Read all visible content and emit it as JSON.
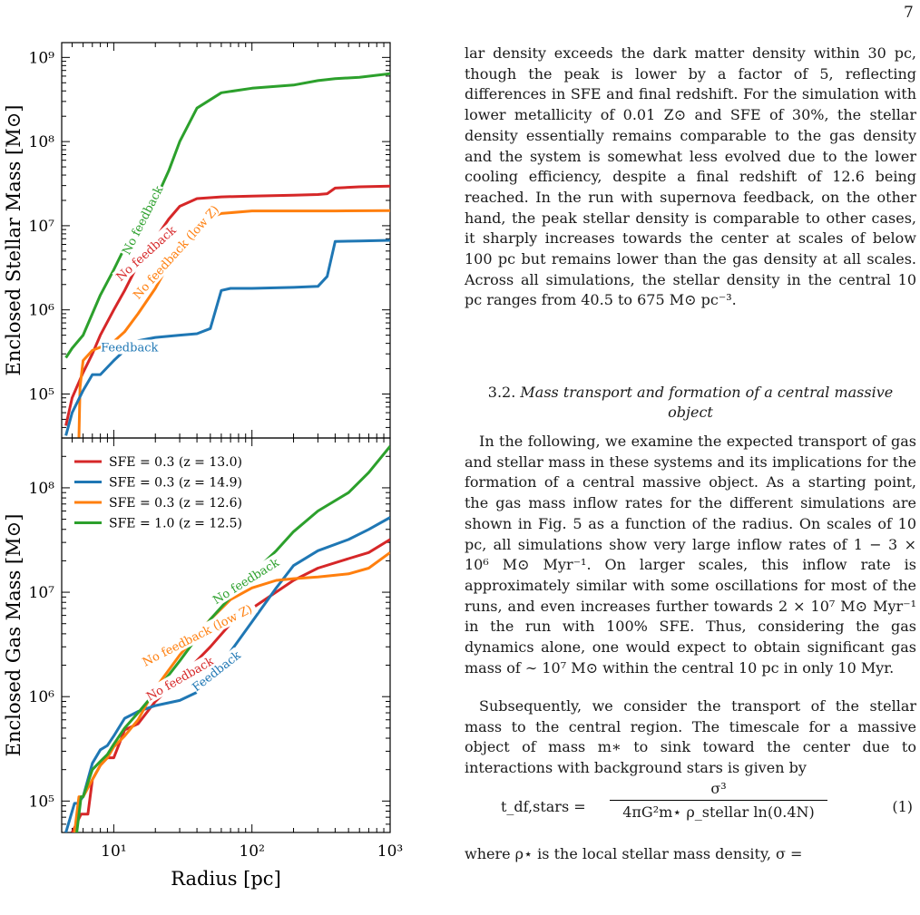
{
  "page_number": "7",
  "paragraph1": "lar density exceeds the dark matter density within 30 pc, though the peak is lower by a factor of 5, reflecting differences in SFE and final redshift. For the simulation with lower metallicity of 0.01 Z⊙ and SFE of 30%, the stellar density essentially remains comparable to the gas density and the system is somewhat less evolved due to the lower cooling efficiency, despite a final redshift of 12.6 being reached. In the run with supernova feedback, on the other hand, the peak stellar density is comparable to other cases, it sharply increases towards the center at scales of below 100 pc but remains lower than the gas density at all scales. Across all simulations, the stellar density in the central 10 pc ranges from 40.5 to 675 M⊙ pc⁻³.",
  "section": {
    "number": "3.2.",
    "title": "Mass transport and formation of a central massive object"
  },
  "paragraph2": "In the following, we examine the expected transport of gas and stellar mass in these systems and its implications for the formation of a central massive object. As a starting point, the gas mass inflow rates for the different simulations are shown in Fig. 5 as a function of the radius. On scales of 10 pc, all simulations show very large inflow rates of 1 − 3 × 10⁶ M⊙ Myr⁻¹. On larger scales, this inflow rate is approximately similar with some oscillations for most of the runs, and even increases further towards 2 × 10⁷ M⊙ Myr⁻¹ in the run with 100% SFE. Thus, considering the gas dynamics alone, one would expect to obtain significant gas mass of ∼ 10⁷ M⊙ within the central 10 pc in only 10 Myr.",
  "paragraph3": "Subsequently, we consider the transport of the stellar mass to the central region. The timescale for a massive object of mass m∗ to sink toward the center due to interactions with background stars is given by",
  "equation": {
    "lhs": "t_df,stars =",
    "numerator": "σ³",
    "denominator": "4πG²m⋆ ρ_stellar ln(0.4N)",
    "number": "(1)"
  },
  "tail": "where ρ⋆ is the local stellar mass density, σ =",
  "colors": {
    "red": "#d62728",
    "blue": "#1f77b4",
    "orange": "#ff7f0e",
    "green": "#2ca02c"
  },
  "chart_data": [
    {
      "type": "line",
      "title": "",
      "xlabel": "",
      "ylabel": "Enclosed Stellar Mass [M⊙]",
      "xscale": "log",
      "yscale": "log",
      "xlim": [
        4.2,
        1000
      ],
      "ylim": [
        30000,
        1500000000
      ],
      "yticks": [
        {
          "v": 100000,
          "label": "10⁵"
        },
        {
          "v": 1000000,
          "label": "10⁶"
        },
        {
          "v": 10000000,
          "label": "10⁷"
        },
        {
          "v": 100000000,
          "label": "10⁸"
        },
        {
          "v": 1000000000,
          "label": "10⁹"
        }
      ],
      "labels_on_curves": [
        "No feedback",
        "No feedback",
        "No feedback (low Z)",
        "Feedback"
      ],
      "series": [
        {
          "color": "green",
          "label": "No feedback",
          "label_x": 16,
          "label_rot": -63,
          "x": [
            4.5,
            5,
            6,
            7,
            8,
            10,
            12,
            15,
            20,
            25,
            30,
            40,
            60,
            100,
            200,
            300,
            400,
            600,
            1000
          ],
          "y": [
            270000,
            350000,
            500000,
            900000,
            1500000,
            3000000,
            5500000,
            10000000,
            20000000,
            45000000,
            100000000,
            250000000,
            380000000,
            430000000,
            470000000,
            530000000,
            560000000,
            580000000,
            640000000
          ]
        },
        {
          "color": "red",
          "label": "No feedback",
          "label_x": 17,
          "label_rot": -42,
          "x": [
            4.5,
            5,
            6,
            7,
            8,
            10,
            12,
            15,
            20,
            25,
            30,
            40,
            60,
            100,
            200,
            300,
            350,
            400,
            600,
            1000
          ],
          "y": [
            42000,
            90000,
            180000,
            300000,
            500000,
            1000000,
            1700000,
            3500000,
            7000000,
            12000000,
            17000000,
            21000000,
            22000000,
            22500000,
            23000000,
            23500000,
            24000000,
            28000000,
            29000000,
            29500000
          ]
        },
        {
          "color": "orange",
          "label": "No feedback (low Z)",
          "label_x": 28,
          "label_rot": -48,
          "x": [
            5.6,
            5.7,
            6,
            7,
            8,
            10,
            12,
            15,
            20,
            25,
            30,
            40,
            60,
            100,
            200,
            400,
            1000
          ],
          "y": [
            30000,
            120000,
            250000,
            330000,
            360000,
            420000,
            550000,
            900000,
            1800000,
            3500000,
            6000000,
            11000000,
            14000000,
            15000000,
            15000000,
            15000000,
            15100000
          ]
        },
        {
          "color": "blue",
          "label": "Feedback",
          "label_x": 13,
          "label_rot": 0,
          "x": [
            4.5,
            5,
            6,
            7,
            8,
            10,
            12,
            15,
            20,
            30,
            40,
            50,
            60,
            70,
            100,
            200,
            300,
            350,
            400,
            600,
            1000
          ],
          "y": [
            32000,
            60000,
            110000,
            170000,
            170000,
            250000,
            330000,
            430000,
            470000,
            500000,
            520000,
            600000,
            1700000,
            1800000,
            1800000,
            1850000,
            1900000,
            2500000,
            6500000,
            6600000,
            6700000
          ]
        }
      ]
    },
    {
      "type": "line",
      "title": "",
      "xlabel": "Radius [pc]",
      "ylabel": "Enclosed Gas Mass [M⊙]",
      "xscale": "log",
      "yscale": "log",
      "xlim": [
        4.2,
        1000
      ],
      "ylim": [
        50000,
        300000000
      ],
      "xticks": [
        {
          "v": 10,
          "label": "10¹"
        },
        {
          "v": 100,
          "label": "10²"
        },
        {
          "v": 1000,
          "label": "10³"
        }
      ],
      "yticks": [
        {
          "v": 100000,
          "label": "10⁵"
        },
        {
          "v": 1000000,
          "label": "10⁶"
        },
        {
          "v": 10000000,
          "label": "10⁷"
        },
        {
          "v": 100000000,
          "label": "10⁸"
        }
      ],
      "legend_position": "top-left",
      "series": [
        {
          "name": "SFE = 0.3 (z = 13.0)",
          "color": "red",
          "label": "No feedback",
          "label_x": 30,
          "label_rot": -30,
          "x": [
            5,
            5.8,
            6.5,
            7,
            8,
            9,
            10,
            12,
            15,
            20,
            30,
            50,
            70,
            100,
            200,
            300,
            500,
            700,
            1000
          ],
          "y": [
            50000,
            75000,
            75000,
            160000,
            220000,
            260000,
            260000,
            480000,
            550000,
            900000,
            1500000,
            3000000,
            5000000,
            7000000,
            13000000,
            17000000,
            21000000,
            24000000,
            32000000
          ]
        },
        {
          "name": "SFE = 0.3 (z = 14.9)",
          "color": "blue",
          "label": "Feedback",
          "label_x": 55,
          "label_rot": -38,
          "x": [
            4.5,
            5.2,
            5.5,
            6,
            7,
            8,
            9,
            10,
            12,
            15,
            20,
            30,
            40,
            50,
            70,
            100,
            150,
            200,
            300,
            500,
            700,
            1000
          ],
          "y": [
            50000,
            95000,
            95000,
            110000,
            230000,
            310000,
            340000,
            420000,
            620000,
            720000,
            820000,
            920000,
            1100000,
            1500000,
            2700000,
            5200000,
            11000000,
            18000000,
            25000000,
            32000000,
            40000000,
            52000000
          ]
        },
        {
          "name": "SFE = 0.3 (z = 12.6)",
          "color": "orange",
          "label": "No feedback (low Z)",
          "label_x": 40,
          "label_rot": -27,
          "x": [
            5.2,
            5.6,
            6,
            7,
            8,
            9,
            10,
            12,
            15,
            20,
            30,
            50,
            70,
            100,
            150,
            200,
            300,
            500,
            700,
            1000
          ],
          "y": [
            50000,
            110000,
            110000,
            160000,
            220000,
            260000,
            330000,
            420000,
            600000,
            1200000,
            2500000,
            5500000,
            8500000,
            11000000,
            13000000,
            13500000,
            14000000,
            15000000,
            17000000,
            24000000
          ]
        },
        {
          "name": "SFE = 1.0 (z = 12.5)",
          "color": "green",
          "label": "No feedback",
          "label_x": 90,
          "label_rot": -32,
          "x": [
            5.4,
            5.8,
            6,
            7,
            8,
            9,
            10,
            12,
            15,
            20,
            30,
            50,
            70,
            100,
            150,
            200,
            300,
            500,
            700,
            1000
          ],
          "y": [
            50000,
            110000,
            110000,
            200000,
            240000,
            280000,
            350000,
            500000,
            700000,
            1100000,
            2200000,
            5500000,
            9000000,
            15000000,
            25000000,
            38000000,
            60000000,
            90000000,
            140000000,
            250000000
          ]
        }
      ]
    }
  ]
}
